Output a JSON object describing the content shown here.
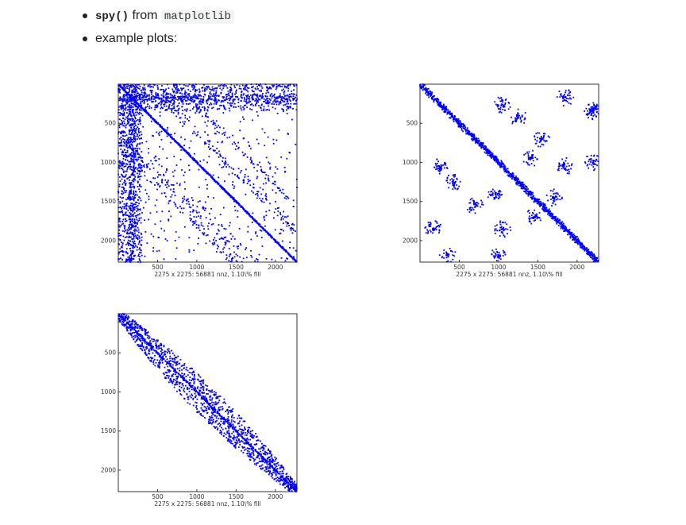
{
  "bullets": {
    "spy_code": "spy()",
    "spy_from": " from ",
    "spy_lib": "matplotlib",
    "examples_label": "example plots:"
  },
  "colors": {
    "marker": "#0000ff",
    "axes": "#333333"
  },
  "chart_data": [
    {
      "type": "scatter",
      "pattern": "unordered-sparse",
      "title": "",
      "xlabel": "2275 x 2275: 56881 nnz, 1.10\\% fill",
      "ylabel": "",
      "xlim": [
        0,
        2275
      ],
      "ylim": [
        2275,
        0
      ],
      "xticks": [
        500,
        1000,
        1500,
        2000
      ],
      "yticks": [
        500,
        1000,
        1500,
        2000
      ],
      "xtick_labels": [
        "500",
        "1000",
        "1500",
        "2000"
      ],
      "ytick_labels": [
        "500",
        "1000",
        "1500",
        "2000"
      ]
    },
    {
      "type": "scatter",
      "pattern": "reordered-clustered",
      "title": "",
      "xlabel": "2275 x 2275: 56881 nnz, 1.10\\% fill",
      "ylabel": "",
      "xlim": [
        0,
        2275
      ],
      "ylim": [
        2275,
        0
      ],
      "xticks": [
        500,
        1000,
        1500,
        2000
      ],
      "yticks": [
        500,
        1000,
        1500,
        2000
      ],
      "xtick_labels": [
        "500",
        "1000",
        "1500",
        "2000"
      ],
      "ytick_labels": [
        "500",
        "1000",
        "1500",
        "2000"
      ]
    },
    {
      "type": "scatter",
      "pattern": "banded",
      "title": "",
      "xlabel": "2275 x 2275: 56881 nnz, 1.10\\% fill",
      "ylabel": "",
      "xlim": [
        0,
        2275
      ],
      "ylim": [
        2275,
        0
      ],
      "xticks": [
        500,
        1000,
        1500,
        2000
      ],
      "yticks": [
        500,
        1000,
        1500,
        2000
      ],
      "xtick_labels": [
        "500",
        "1000",
        "1500",
        "2000"
      ],
      "ytick_labels": [
        "500",
        "1000",
        "1500",
        "2000"
      ]
    }
  ]
}
